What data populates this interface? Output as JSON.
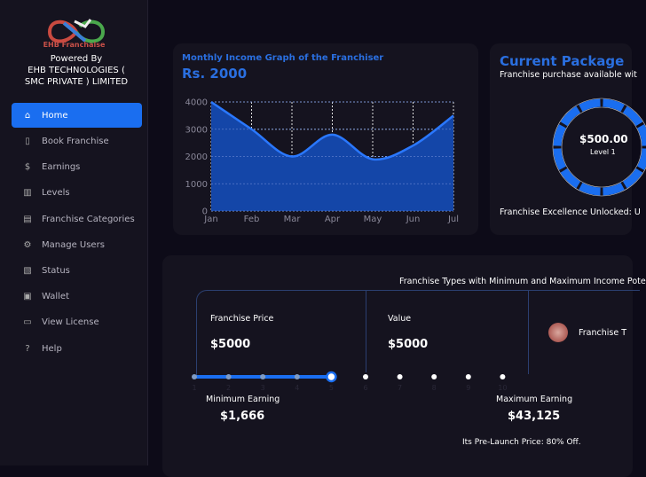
{
  "sidebar": {
    "brand": "EHB Franchaise",
    "powered_by": "Powered By",
    "company": "EHB TECHNOLOGIES ( SMC PRIVATE ) LIMITED",
    "items": [
      {
        "label": "Home",
        "icon": "home-icon",
        "active": true
      },
      {
        "label": "Book Franchise",
        "icon": "book-icon"
      },
      {
        "label": "Earnings",
        "icon": "dollar-circle-icon"
      },
      {
        "label": "Levels",
        "icon": "bar-chart-icon"
      },
      {
        "label": "Franchise Categories",
        "icon": "store-icon"
      },
      {
        "label": "Manage Users",
        "icon": "gear-icon"
      },
      {
        "label": "Status",
        "icon": "document-status-icon"
      },
      {
        "label": "Wallet",
        "icon": "wallet-icon"
      },
      {
        "label": "View License",
        "icon": "license-icon"
      },
      {
        "label": "Help",
        "icon": "help-circle-icon"
      }
    ]
  },
  "income": {
    "title": "Monthly Income Graph of the Franchiser",
    "value": "Rs. 2000"
  },
  "chart_data": {
    "type": "area",
    "categories": [
      "Jan",
      "Feb",
      "Mar",
      "Apr",
      "May",
      "Jun",
      "Jul"
    ],
    "values": [
      4000,
      3000,
      2000,
      2800,
      1900,
      2400,
      3500
    ],
    "yticks": [
      0,
      1000,
      2000,
      3000,
      4000
    ],
    "ylim": [
      0,
      4000
    ],
    "grid": true,
    "color": "#1a6ef0"
  },
  "package": {
    "title": "Current Package",
    "subtitle": "Franchise purchase available wit",
    "amount": "$500.00",
    "level": "Level 1",
    "footer": "Franchise Excellence Unlocked: U"
  },
  "types": {
    "heading": "Franchise Types with Minimum and Maximum Income Pote",
    "price_label": "Franchise Price",
    "price": "$5000",
    "value_label": "Value",
    "value": "$5000",
    "type_label": "Franchise T",
    "slider_steps": [
      "1",
      "2",
      "3",
      "4",
      "5",
      "6",
      "7",
      "8",
      "9",
      "10"
    ],
    "slider_value": 5,
    "min_label": "Minimum Earning",
    "min": "$1,666",
    "max_label": "Maximum Earning",
    "max": "$43,125",
    "prelaunch": "Its Pre-Launch Price: 80% Off."
  }
}
